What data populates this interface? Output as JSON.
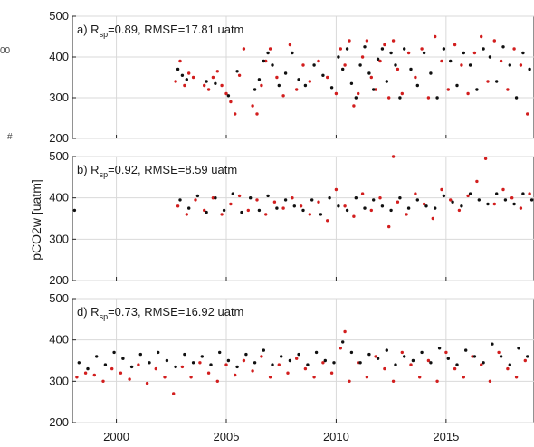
{
  "left_fragments": [
    "00",
    "#"
  ],
  "ylabel": "pCO2w [uatm]",
  "colors": {
    "observed": "#d21e1e",
    "model": "#101010",
    "grid": "#d9d9d9",
    "axis": "#262626"
  },
  "chart_data": [
    {
      "type": "scatter",
      "annotation": {
        "prefix": "a) R",
        "sub": "sp",
        "suffix": "=0.89, RMSE=17.81 uatm"
      },
      "xlim": [
        1998,
        2019
      ],
      "ylim": [
        200,
        500
      ],
      "yticks": [
        200,
        300,
        400,
        500
      ],
      "xticks": [
        2000,
        2005,
        2010,
        2015
      ],
      "xtick_labels": [],
      "grid": true,
      "series": [
        {
          "color_key": "observed",
          "x": [
            2002.7,
            2002.9,
            2003.1,
            2003.3,
            2003.5,
            2004.0,
            2004.2,
            2004.4,
            2004.6,
            2004.8,
            2005.0,
            2005.2,
            2005.4,
            2005.6,
            2005.8,
            2006.2,
            2006.4,
            2006.6,
            2006.8,
            2007.0,
            2007.3,
            2007.6,
            2007.9,
            2008.2,
            2008.5,
            2008.8,
            2009.2,
            2009.6,
            2010.0,
            2010.2,
            2010.4,
            2010.6,
            2010.8,
            2011.0,
            2011.2,
            2011.4,
            2011.6,
            2011.8,
            2012.0,
            2012.2,
            2012.4,
            2012.6,
            2012.8,
            2013.0,
            2013.3,
            2013.6,
            2013.9,
            2014.2,
            2014.5,
            2014.8,
            2015.1,
            2015.4,
            2015.7,
            2016.0,
            2016.3,
            2016.6,
            2016.9,
            2017.2,
            2017.5,
            2017.8,
            2018.1,
            2018.4,
            2018.7
          ],
          "y": [
            340,
            390,
            330,
            360,
            350,
            330,
            320,
            350,
            365,
            330,
            310,
            290,
            260,
            355,
            420,
            280,
            260,
            330,
            390,
            420,
            350,
            305,
            430,
            320,
            380,
            340,
            390,
            350,
            310,
            420,
            380,
            440,
            280,
            310,
            400,
            440,
            350,
            320,
            390,
            430,
            300,
            440,
            370,
            310,
            410,
            350,
            420,
            300,
            450,
            390,
            320,
            430,
            380,
            310,
            410,
            450,
            340,
            440,
            390,
            320,
            420,
            380,
            260
          ]
        },
        {
          "color_key": "model",
          "x": [
            2002.8,
            2003.0,
            2003.2,
            2004.1,
            2004.5,
            2005.1,
            2005.5,
            2006.3,
            2006.5,
            2006.7,
            2006.9,
            2007.1,
            2007.4,
            2007.7,
            2008.0,
            2008.3,
            2008.6,
            2009.0,
            2009.4,
            2009.8,
            2010.1,
            2010.3,
            2010.5,
            2010.7,
            2010.9,
            2011.1,
            2011.3,
            2011.5,
            2011.7,
            2011.9,
            2012.1,
            2012.3,
            2012.5,
            2012.7,
            2012.9,
            2013.1,
            2013.4,
            2013.7,
            2014.0,
            2014.3,
            2014.6,
            2014.9,
            2015.2,
            2015.5,
            2015.8,
            2016.1,
            2016.4,
            2016.7,
            2017.0,
            2017.3,
            2017.6,
            2017.9,
            2018.2,
            2018.5,
            2018.8
          ],
          "y": [
            370,
            355,
            345,
            340,
            335,
            305,
            365,
            320,
            345,
            390,
            410,
            380,
            330,
            360,
            410,
            345,
            330,
            380,
            355,
            325,
            400,
            370,
            420,
            335,
            300,
            380,
            425,
            360,
            320,
            395,
            420,
            340,
            410,
            380,
            300,
            420,
            370,
            330,
            410,
            360,
            300,
            420,
            390,
            330,
            410,
            380,
            320,
            420,
            400,
            340,
            425,
            380,
            300,
            410,
            370
          ]
        }
      ]
    },
    {
      "type": "scatter",
      "annotation": {
        "prefix": "b) R",
        "sub": "sp",
        "suffix": "=0.92, RMSE=8.59 uatm"
      },
      "xlim": [
        1998,
        2019
      ],
      "ylim": [
        200,
        500
      ],
      "yticks": [
        200,
        300,
        400,
        500
      ],
      "xticks": [
        2000,
        2005,
        2010,
        2015
      ],
      "xtick_labels": [],
      "grid": true,
      "series": [
        {
          "color_key": "observed",
          "x": [
            2002.8,
            2003.2,
            2003.6,
            2004.0,
            2004.4,
            2004.8,
            2005.2,
            2005.6,
            2006.0,
            2006.4,
            2006.8,
            2007.2,
            2007.6,
            2008.0,
            2008.4,
            2008.8,
            2009.2,
            2009.6,
            2010.0,
            2010.4,
            2010.8,
            2011.2,
            2011.6,
            2012.0,
            2012.4,
            2012.6,
            2012.8,
            2013.2,
            2013.6,
            2014.0,
            2014.4,
            2014.8,
            2015.2,
            2015.6,
            2016.0,
            2016.4,
            2016.8,
            2017.2,
            2017.6,
            2018.0,
            2018.4,
            2018.8
          ],
          "y": [
            380,
            360,
            395,
            370,
            400,
            360,
            385,
            405,
            370,
            395,
            360,
            390,
            375,
            400,
            380,
            360,
            390,
            345,
            420,
            380,
            355,
            410,
            370,
            400,
            330,
            500,
            390,
            360,
            410,
            385,
            350,
            420,
            395,
            370,
            405,
            440,
            495,
            385,
            420,
            400,
            375,
            410
          ]
        },
        {
          "color_key": "model",
          "x": [
            1998.1,
            2002.9,
            2003.3,
            2003.7,
            2004.1,
            2004.5,
            2004.9,
            2005.3,
            2005.7,
            2006.1,
            2006.5,
            2006.9,
            2007.3,
            2007.7,
            2008.1,
            2008.5,
            2008.9,
            2009.3,
            2009.7,
            2010.1,
            2010.5,
            2010.9,
            2011.3,
            2011.7,
            2012.1,
            2012.5,
            2012.9,
            2013.3,
            2013.7,
            2014.1,
            2014.5,
            2014.9,
            2015.3,
            2015.7,
            2016.1,
            2016.5,
            2016.9,
            2017.3,
            2017.7,
            2018.1,
            2018.5,
            2018.9
          ],
          "y": [
            370,
            395,
            375,
            405,
            365,
            400,
            370,
            410,
            365,
            400,
            370,
            405,
            375,
            395,
            380,
            370,
            395,
            360,
            400,
            380,
            370,
            400,
            375,
            395,
            380,
            370,
            400,
            375,
            395,
            380,
            375,
            405,
            390,
            380,
            410,
            395,
            385,
            410,
            395,
            385,
            410,
            395
          ]
        }
      ]
    },
    {
      "type": "scatter",
      "annotation": {
        "prefix": "d) R",
        "sub": "sp",
        "suffix": "=0.73, RMSE=16.92 uatm"
      },
      "xlim": [
        1998,
        2019
      ],
      "ylim": [
        200,
        500
      ],
      "yticks": [
        200,
        300,
        400,
        500
      ],
      "xticks": [
        2000,
        2005,
        2010,
        2015
      ],
      "xtick_labels": [
        "2000",
        "2005",
        "2010",
        "2015"
      ],
      "grid": true,
      "series": [
        {
          "color_key": "observed",
          "x": [
            1998.2,
            1998.6,
            1999.0,
            1999.4,
            1999.8,
            2000.2,
            2000.6,
            2001.0,
            2001.4,
            2001.8,
            2002.2,
            2002.6,
            2003.0,
            2003.4,
            2003.8,
            2004.2,
            2004.6,
            2005.0,
            2005.4,
            2005.8,
            2006.2,
            2006.6,
            2007.0,
            2007.4,
            2007.8,
            2008.2,
            2008.6,
            2009.0,
            2009.4,
            2009.8,
            2010.2,
            2010.4,
            2010.6,
            2011.0,
            2011.4,
            2011.8,
            2012.2,
            2012.6,
            2013.0,
            2013.4,
            2013.8,
            2014.2,
            2014.6,
            2015.0,
            2015.4,
            2015.8,
            2016.2,
            2016.6,
            2017.0,
            2017.4,
            2017.8,
            2018.2,
            2018.6
          ],
          "y": [
            310,
            320,
            315,
            300,
            330,
            320,
            305,
            340,
            295,
            330,
            310,
            270,
            335,
            310,
            345,
            320,
            300,
            340,
            315,
            350,
            325,
            360,
            310,
            340,
            320,
            355,
            330,
            310,
            345,
            320,
            380,
            420,
            300,
            345,
            310,
            360,
            330,
            300,
            370,
            340,
            310,
            350,
            300,
            370,
            330,
            310,
            360,
            340,
            300,
            370,
            330,
            310,
            350
          ]
        },
        {
          "color_key": "model",
          "x": [
            1998.3,
            1998.7,
            1999.1,
            1999.5,
            1999.9,
            2000.3,
            2000.7,
            2001.1,
            2001.5,
            2001.9,
            2002.3,
            2002.7,
            2003.1,
            2003.5,
            2003.9,
            2004.3,
            2004.7,
            2005.1,
            2005.5,
            2005.9,
            2006.3,
            2006.7,
            2007.1,
            2007.5,
            2007.9,
            2008.3,
            2008.7,
            2009.1,
            2009.5,
            2009.9,
            2010.3,
            2010.7,
            2011.1,
            2011.5,
            2011.9,
            2012.3,
            2012.7,
            2013.1,
            2013.5,
            2013.9,
            2014.3,
            2014.7,
            2015.1,
            2015.5,
            2015.9,
            2016.3,
            2016.7,
            2017.1,
            2017.5,
            2017.9,
            2018.3,
            2018.7
          ],
          "y": [
            345,
            330,
            360,
            340,
            370,
            355,
            335,
            365,
            345,
            370,
            350,
            335,
            365,
            345,
            360,
            340,
            370,
            350,
            335,
            365,
            345,
            375,
            340,
            360,
            350,
            365,
            340,
            370,
            350,
            345,
            395,
            370,
            345,
            365,
            355,
            375,
            340,
            360,
            350,
            370,
            345,
            380,
            355,
            340,
            375,
            360,
            345,
            390,
            360,
            340,
            380,
            360
          ]
        }
      ]
    }
  ]
}
